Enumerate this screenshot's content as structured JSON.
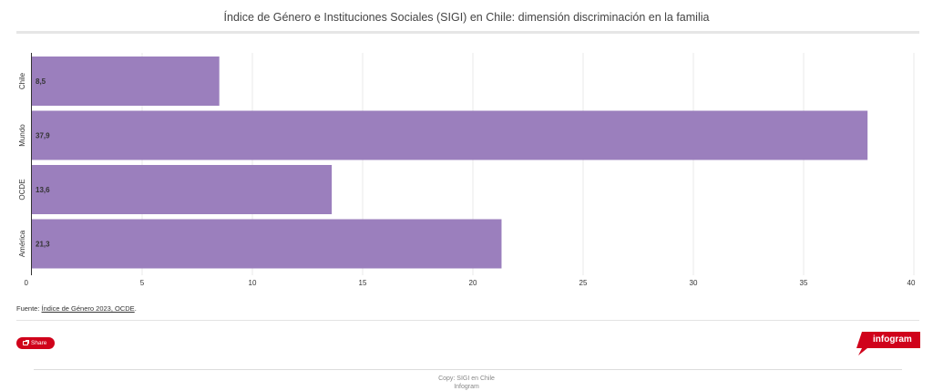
{
  "source": {
    "prefix": "Fuente: ",
    "link_text": "Índice de Género 2023, OCDE",
    "suffix": "."
  },
  "share": {
    "label": "Share"
  },
  "brand": {
    "logo_text": "infogram",
    "color": "#d0021b"
  },
  "footer": {
    "copy": "Copy: SIGI en Chile",
    "credit": "Infogram"
  },
  "colors": {
    "bar": "#9b7fbd"
  },
  "chart_data": {
    "type": "bar",
    "orientation": "horizontal",
    "title": "Índice de Género e Instituciones Sociales (SIGI) en Chile: dimensión discriminación en la familia",
    "categories": [
      "Chile",
      "Mundo",
      "OCDE",
      "América"
    ],
    "values": [
      8.5,
      37.9,
      13.6,
      21.3
    ],
    "value_labels": [
      "8,5",
      "37,9",
      "13,6",
      "21,3"
    ],
    "xlim": [
      0,
      40
    ],
    "xticks": [
      0,
      5,
      10,
      15,
      20,
      25,
      30,
      35,
      40
    ],
    "grid": true,
    "legend": "none"
  }
}
